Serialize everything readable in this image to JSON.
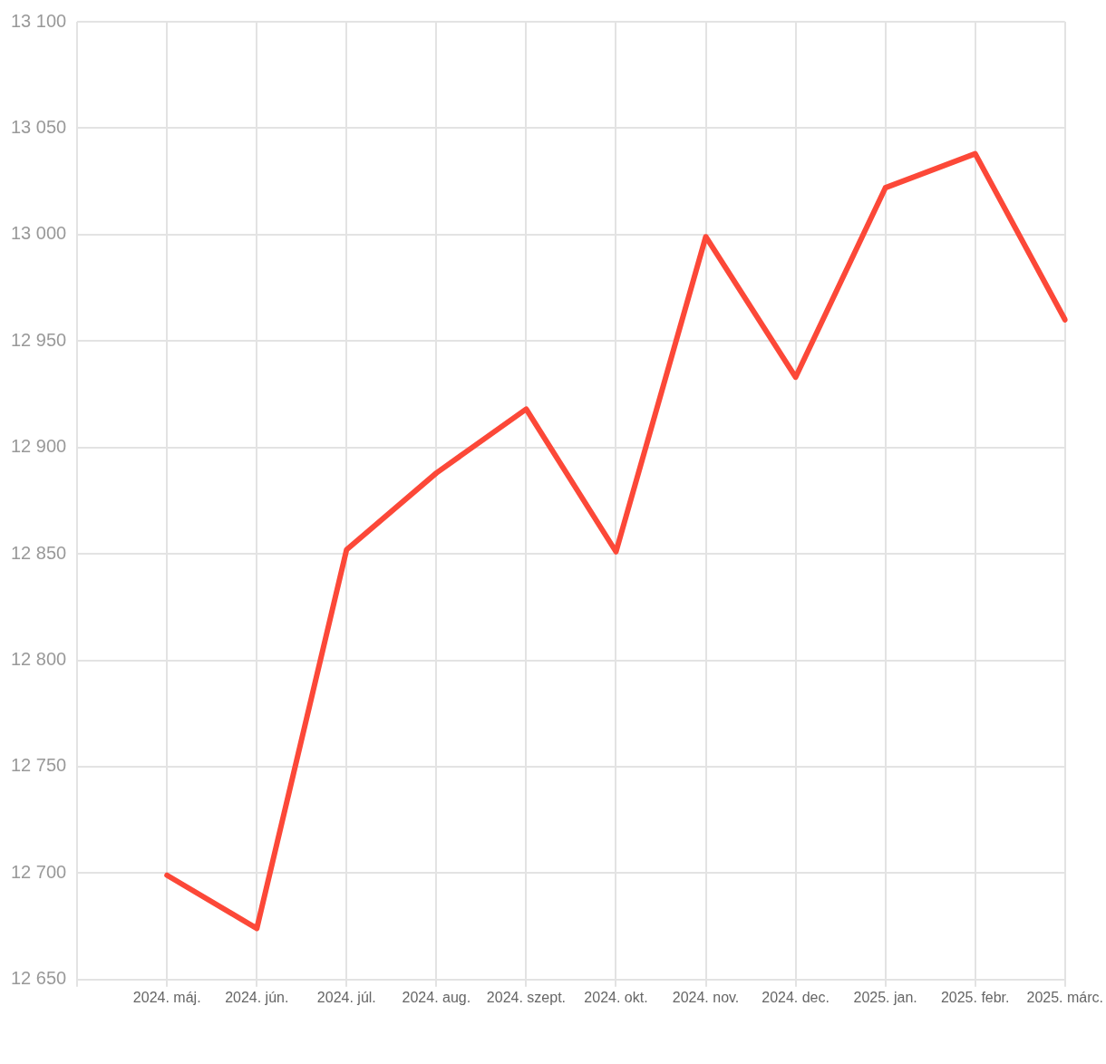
{
  "chart_data": {
    "type": "line",
    "categories": [
      null,
      "2024. máj.",
      "2024. jún.",
      "2024. júl.",
      "2024. aug.",
      "2024. szept.",
      "2024. okt.",
      "2024. nov.",
      "2024. dec.",
      "2025. jan.",
      "2025. febr.",
      "2025. márc."
    ],
    "series": [
      {
        "color": "#fc4838",
        "values": [
          null,
          12699,
          12674,
          12852,
          12888,
          12918,
          12851,
          12999,
          12933,
          13022,
          13038,
          12960
        ]
      }
    ],
    "ylim": [
      12650,
      13100
    ],
    "yticks": [
      {
        "value": 12650,
        "label": "12 650"
      },
      {
        "value": 12700,
        "label": "12 700"
      },
      {
        "value": 12750,
        "label": "12 750"
      },
      {
        "value": 12800,
        "label": "12 800"
      },
      {
        "value": 12850,
        "label": "12 850"
      },
      {
        "value": 12900,
        "label": "12 900"
      },
      {
        "value": 12950,
        "label": "12 950"
      },
      {
        "value": 13000,
        "label": "13 000"
      },
      {
        "value": 13050,
        "label": "13 050"
      },
      {
        "value": 13100,
        "label": "13 100"
      }
    ],
    "grid": true,
    "legend": false,
    "marker": "none",
    "line_style": "solid"
  }
}
